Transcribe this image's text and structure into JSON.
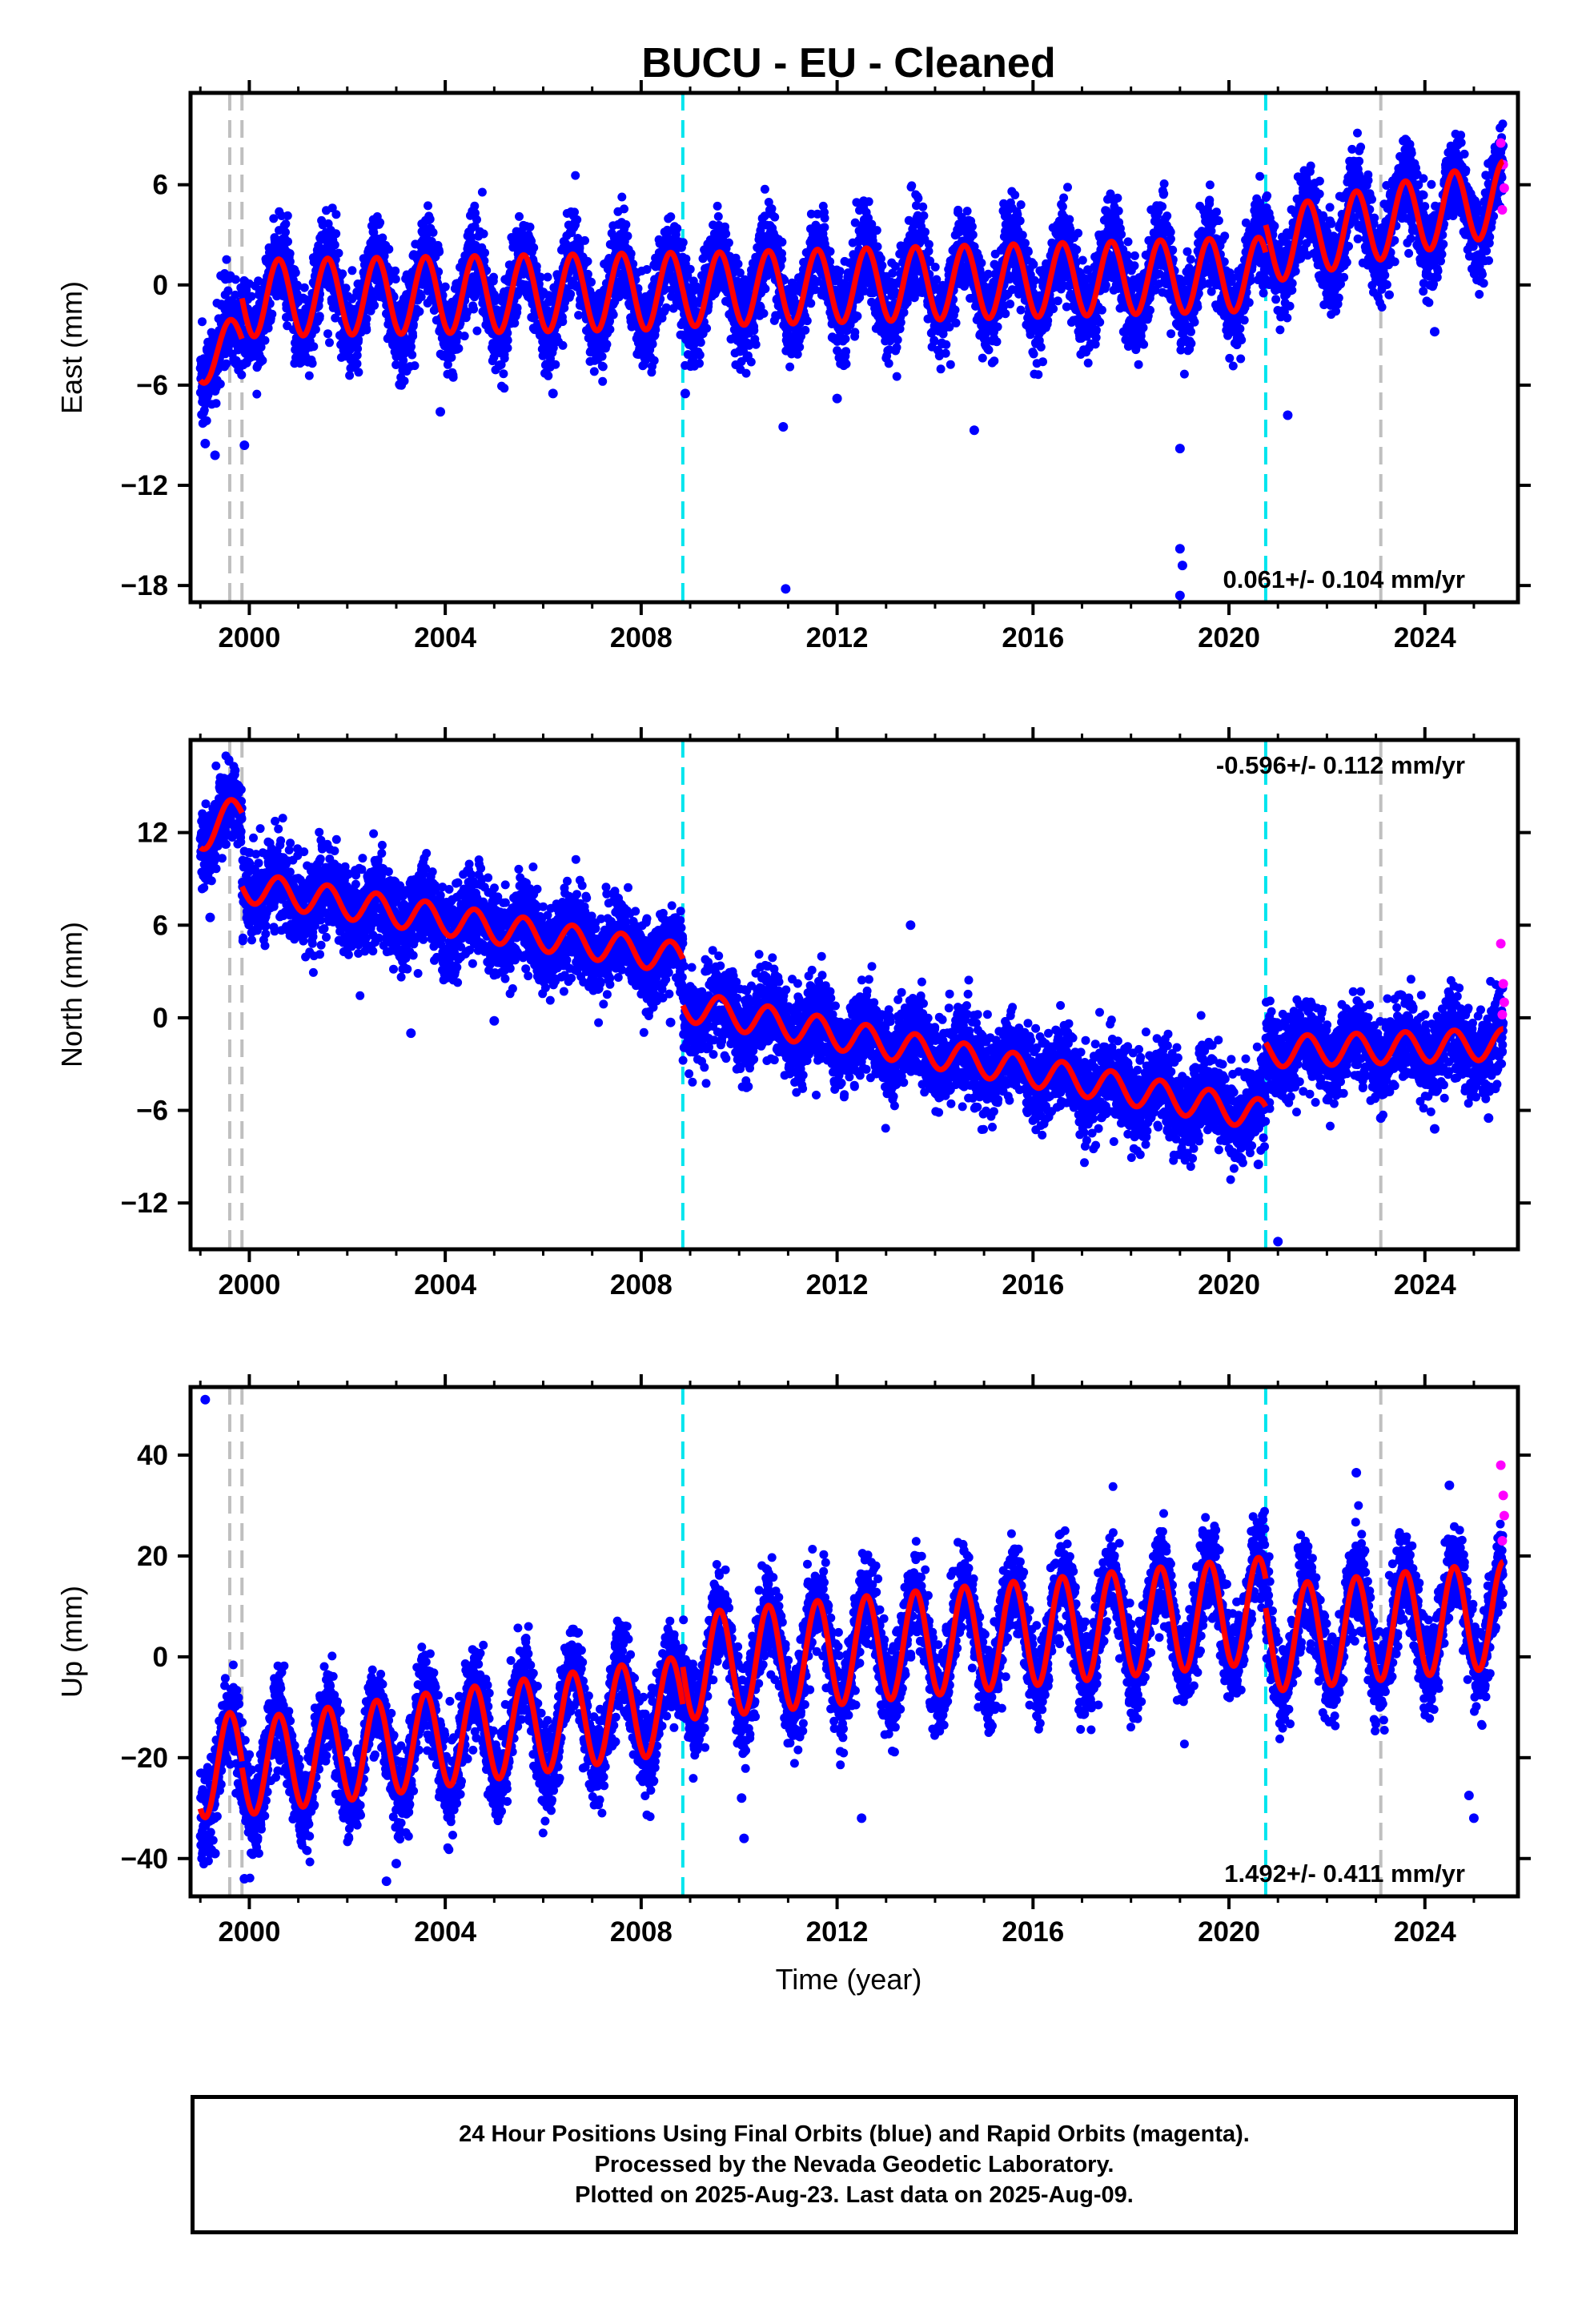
{
  "title": "BUCU  - EU - Cleaned",
  "xlabel": "Time (year)",
  "colors": {
    "final_orbits": "#0000ff",
    "rapid_orbits": "#ff00ff",
    "model_fit": "#ff0000",
    "equipment_change": "#00e5ee",
    "earthquake_marker": "#bfbfbf"
  },
  "caption": {
    "line1": "24 Hour Positions Using Final Orbits (blue) and Rapid Orbits (magenta).",
    "line2": "Processed by the Nevada Geodetic Laboratory.",
    "line3": "Plotted on 2025-Aug-23. Last data on 2025-Aug-09."
  },
  "chart_data": [
    {
      "type": "scatter",
      "component": "east",
      "ylabel": "East (mm)",
      "velocity_label": "0.061+/- 0.104 mm/yr",
      "velocity_label_position": "bottom-right",
      "xlim": [
        1998.8,
        2025.9
      ],
      "ylim": [
        -19,
        11.5
      ],
      "xticks": [
        2000,
        2004,
        2008,
        2012,
        2016,
        2020,
        2024
      ],
      "yticks": [
        6,
        0,
        -6,
        -12,
        -18
      ],
      "gray_dashed_lines": [
        1999.6,
        1999.85,
        2023.1
      ],
      "cyan_dashed_lines": [
        2008.85,
        2020.75
      ],
      "model": {
        "segments": [
          {
            "x0": 1999.0,
            "x1": 1999.85,
            "a": -4.5,
            "b": 1.5,
            "amp": 1.5
          },
          {
            "x0": 1999.85,
            "x1": 2008.85,
            "a": -0.8,
            "b": 0.05,
            "amp": 2.3
          },
          {
            "x0": 2008.85,
            "x1": 2020.75,
            "a": -0.3,
            "b": 0.08,
            "amp": 2.2
          },
          {
            "x0": 2020.75,
            "x1": 2025.6,
            "a": 2.3,
            "b": 0.6,
            "amp": 2.2
          }
        ]
      },
      "scatter_sd": 1.3,
      "outliers": [
        [
          1999.1,
          -9.5
        ],
        [
          1999.3,
          -10.2
        ],
        [
          1999.9,
          -9.6
        ],
        [
          2003.9,
          -7.6
        ],
        [
          2006.2,
          -6.5
        ],
        [
          2008.9,
          -6.5
        ],
        [
          2010.9,
          -8.5
        ],
        [
          2010.95,
          -18.2
        ],
        [
          2012.0,
          -6.8
        ],
        [
          2014.8,
          -8.7
        ],
        [
          2019.0,
          -9.8
        ],
        [
          2019.0,
          -15.8
        ],
        [
          2019.05,
          -16.8
        ],
        [
          2021.2,
          -7.8
        ],
        [
          2024.2,
          -2.8
        ],
        [
          2019.0,
          -18.6
        ]
      ],
      "rapid_points": [
        [
          2025.55,
          8.5
        ],
        [
          2025.6,
          7.2
        ],
        [
          2025.62,
          5.8
        ],
        [
          2025.58,
          4.5
        ]
      ]
    },
    {
      "type": "scatter",
      "component": "north",
      "ylabel": "North (mm)",
      "velocity_label": "-0.596+/- 0.112 mm/yr",
      "velocity_label_position": "top-right",
      "xlim": [
        1998.8,
        2025.9
      ],
      "ylim": [
        -15,
        18
      ],
      "xticks": [
        2000,
        2004,
        2008,
        2012,
        2016,
        2020,
        2024
      ],
      "yticks": [
        12,
        6,
        0,
        -6,
        -12
      ],
      "gray_dashed_lines": [
        1999.6,
        1999.85,
        2023.1
      ],
      "cyan_dashed_lines": [
        2008.85,
        2020.75
      ],
      "model": {
        "segments": [
          {
            "x0": 1999.0,
            "x1": 1999.85,
            "a": 12.0,
            "b": 1.5,
            "amp": 1.2
          },
          {
            "x0": 1999.85,
            "x1": 2008.85,
            "a": 8.5,
            "b": -0.52,
            "amp": 1.0
          },
          {
            "x0": 2008.85,
            "x1": 2020.75,
            "a": 0.8,
            "b": -0.6,
            "amp": 1.0
          },
          {
            "x0": 2020.75,
            "x1": 2025.6,
            "a": -2.2,
            "b": 0.1,
            "amp": 1.0
          }
        ]
      },
      "scatter_sd": 1.35,
      "outliers": [
        [
          1999.2,
          6.5
        ],
        [
          2003.3,
          -1.0
        ],
        [
          2005.0,
          -0.2
        ],
        [
          2008.6,
          -0.3
        ],
        [
          2011.2,
          -3.0
        ],
        [
          2013.5,
          6.0
        ],
        [
          2020.6,
          -9.5
        ],
        [
          2021.0,
          -14.5
        ],
        [
          2023.1,
          -6.5
        ],
        [
          2024.2,
          -7.2
        ],
        [
          2025.3,
          -6.5
        ]
      ],
      "rapid_points": [
        [
          2025.55,
          4.8
        ],
        [
          2025.6,
          2.2
        ],
        [
          2025.62,
          1.0
        ],
        [
          2025.58,
          0.2
        ]
      ]
    },
    {
      "type": "scatter",
      "component": "up",
      "ylabel": "Up (mm)",
      "velocity_label": "1.492+/- 0.411 mm/yr",
      "velocity_label_position": "bottom-right",
      "xlim": [
        1998.8,
        2025.9
      ],
      "ylim": [
        -47.5,
        53.5
      ],
      "xticks": [
        2000,
        2004,
        2008,
        2012,
        2016,
        2020,
        2024
      ],
      "yticks": [
        40,
        20,
        0,
        -20,
        -40
      ],
      "gray_dashed_lines": [
        1999.6,
        1999.85,
        2023.1
      ],
      "cyan_dashed_lines": [
        2008.85,
        2020.75
      ],
      "model": {
        "segments": [
          {
            "x0": 1999.0,
            "x1": 1999.85,
            "a": -22.0,
            "b": 1.5,
            "amp": 10.0
          },
          {
            "x0": 1999.85,
            "x1": 2008.85,
            "a": -22.0,
            "b": 1.4,
            "amp": 9.5
          },
          {
            "x0": 2008.85,
            "x1": 2020.75,
            "a": -2.0,
            "b": 0.95,
            "amp": 10.5
          },
          {
            "x0": 2020.75,
            "x1": 2025.6,
            "a": 3.5,
            "b": 1.0,
            "amp": 10.5
          }
        ]
      },
      "scatter_sd": 4.5,
      "outliers": [
        [
          1999.1,
          51.0
        ],
        [
          1999.3,
          -39.0
        ],
        [
          1999.9,
          -44.0
        ],
        [
          2002.8,
          -44.5
        ],
        [
          2003.0,
          -41.0
        ],
        [
          2010.05,
          -28.0
        ],
        [
          2010.1,
          -36.0
        ],
        [
          2012.5,
          -32.0
        ],
        [
          2022.6,
          36.5
        ],
        [
          2024.5,
          34.0
        ],
        [
          2024.9,
          -27.5
        ],
        [
          2025.0,
          -32.0
        ]
      ],
      "rapid_points": [
        [
          2025.55,
          38.0
        ],
        [
          2025.6,
          32.0
        ],
        [
          2025.62,
          28.0
        ],
        [
          2025.58,
          23.0
        ]
      ]
    }
  ]
}
